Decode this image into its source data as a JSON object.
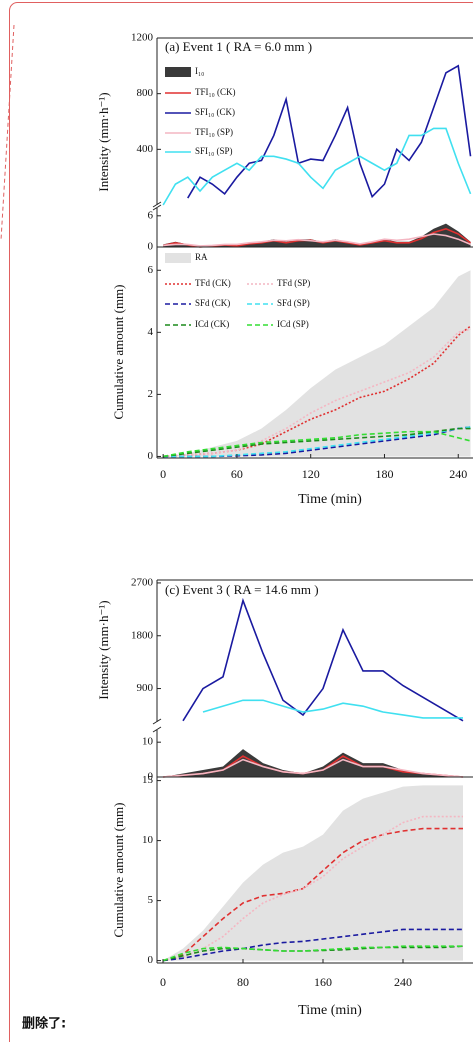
{
  "deleted_label": "删除了:",
  "chart_data": [
    {
      "type": "line",
      "title": "(a)  Event 1    ( RA = 6.0 mm )",
      "y_label": "Intensity (mm·h⁻¹)",
      "broken_axis": true,
      "legend": true,
      "x": [
        0,
        10,
        20,
        30,
        40,
        50,
        60,
        70,
        80,
        90,
        100,
        110,
        120,
        130,
        140,
        150,
        160,
        170,
        180,
        190,
        200,
        210,
        220,
        230,
        240,
        250
      ],
      "xlim": [
        -5,
        252
      ],
      "ylim": [
        0,
        7.5
      ],
      "yticks": [
        0,
        6
      ],
      "y2lim": [
        0,
        1200
      ],
      "y2ticks": [
        400,
        800,
        1200
      ],
      "series": [
        {
          "name": "I₁₀",
          "style": "area",
          "color": "#3a3a3a",
          "values": [
            0.5,
            1,
            0.5,
            0,
            0.3,
            0.5,
            0.3,
            0.8,
            1,
            1.5,
            1,
            1.5,
            1.5,
            1,
            1.5,
            1,
            0.5,
            1,
            1.5,
            1,
            1,
            2,
            3.5,
            4.5,
            3,
            1
          ]
        },
        {
          "name": "TFI₁₀ (CK)",
          "style": "line",
          "color": "#e03030",
          "values": [
            0.3,
            0.8,
            0.4,
            0,
            0.2,
            0.4,
            0.2,
            0.6,
            0.8,
            1.2,
            0.8,
            1.2,
            1.3,
            0.8,
            1.2,
            0.8,
            0.4,
            0.8,
            1.2,
            0.8,
            0.8,
            1.6,
            2.8,
            3.5,
            2.5,
            0.8
          ]
        },
        {
          "name": "SFI₁₀ (CK)",
          "style": "line",
          "color": "#1a1aa0",
          "axis": "y2",
          "values": [
            null,
            null,
            50,
            200,
            150,
            80,
            200,
            300,
            320,
            500,
            760,
            300,
            330,
            320,
            500,
            700,
            300,
            60,
            150,
            400,
            320,
            450,
            700,
            950,
            1000,
            350
          ]
        },
        {
          "name": "TFI₁₀ (SP)",
          "style": "line",
          "color": "#f4b6c2",
          "values": [
            0.3,
            0.5,
            0.5,
            0.2,
            0.3,
            0.5,
            0.5,
            0.8,
            1,
            1.3,
            1.2,
            1.4,
            1.2,
            1,
            1.3,
            1,
            0.6,
            1,
            1.5,
            1.3,
            1.5,
            2,
            2.5,
            2.2,
            1.5,
            0.5
          ]
        },
        {
          "name": "SFI₁₀ (SP)",
          "style": "line",
          "color": "#40e0f0",
          "axis": "y2",
          "values": [
            0,
            150,
            200,
            100,
            200,
            250,
            300,
            250,
            350,
            350,
            330,
            300,
            200,
            120,
            250,
            300,
            350,
            300,
            250,
            300,
            500,
            500,
            550,
            550,
            300,
            80
          ]
        }
      ]
    },
    {
      "type": "line",
      "y_label": "Cumulative amount (mm)",
      "x_label": "Time (min)",
      "legend": true,
      "x": [
        0,
        20,
        40,
        60,
        80,
        100,
        120,
        140,
        160,
        180,
        200,
        220,
        240,
        250
      ],
      "xlim": [
        -5,
        252
      ],
      "xticks": [
        0,
        60,
        120,
        180,
        240
      ],
      "ylim": [
        -0.05,
        6.75
      ],
      "yticks": [
        0,
        2,
        4,
        6
      ],
      "series": [
        {
          "name": "RA",
          "style": "area",
          "color": "#e2e2e2",
          "values": [
            0,
            0.1,
            0.3,
            0.5,
            0.9,
            1.5,
            2.2,
            2.8,
            3.2,
            3.6,
            4.2,
            4.8,
            5.8,
            6.0
          ]
        },
        {
          "name": "TFd (CK)",
          "style": "dotted",
          "color": "#e03030",
          "values": [
            0,
            0.05,
            0.1,
            0.2,
            0.4,
            0.8,
            1.2,
            1.5,
            1.9,
            2.1,
            2.5,
            3.0,
            3.9,
            4.2
          ]
        },
        {
          "name": "TFd (SP)",
          "style": "dotted",
          "color": "#f4b6c2",
          "values": [
            0,
            0.05,
            0.1,
            0.2,
            0.5,
            0.9,
            1.4,
            1.8,
            2.1,
            2.4,
            2.7,
            3.2,
            4.0,
            4.1
          ]
        },
        {
          "name": "SFd (CK)",
          "style": "dashed",
          "color": "#1a1aa0",
          "values": [
            0,
            0,
            0,
            0.02,
            0.05,
            0.1,
            0.2,
            0.3,
            0.4,
            0.5,
            0.6,
            0.7,
            0.9,
            0.95
          ]
        },
        {
          "name": "SFd (SP)",
          "style": "dashed",
          "color": "#40e0f0",
          "values": [
            0,
            0,
            0,
            0.05,
            0.1,
            0.15,
            0.25,
            0.35,
            0.45,
            0.55,
            0.65,
            0.75,
            0.9,
            0.95
          ]
        },
        {
          "name": "ICd (CK)",
          "style": "dashed",
          "color": "#1a8a1a",
          "values": [
            0,
            0.1,
            0.2,
            0.3,
            0.4,
            0.45,
            0.5,
            0.55,
            0.6,
            0.65,
            0.7,
            0.8,
            0.9,
            0.9
          ]
        },
        {
          "name": "ICd (SP)",
          "style": "dashed",
          "color": "#33dd33",
          "values": [
            0,
            0.15,
            0.25,
            0.35,
            0.45,
            0.5,
            0.55,
            0.6,
            0.7,
            0.75,
            0.8,
            0.8,
            0.6,
            0.5
          ]
        }
      ]
    },
    {
      "type": "line",
      "title": "(c)   Event 3    ( RA = 14.6 mm )",
      "y_label": "Intensity (mm·h⁻¹)",
      "broken_axis": true,
      "legend": false,
      "x": [
        0,
        20,
        40,
        60,
        80,
        100,
        120,
        140,
        160,
        180,
        200,
        220,
        240,
        260,
        280,
        300
      ],
      "xlim": [
        -6,
        310
      ],
      "ylim": [
        0,
        13.5
      ],
      "yticks": [
        0,
        10
      ],
      "y2lim": [
        330,
        2750
      ],
      "y2ticks": [
        900,
        1800,
        2700
      ],
      "series": [
        {
          "style": "area",
          "color": "#3a3a3a",
          "values": [
            0,
            1,
            2,
            3,
            8,
            4,
            2,
            1,
            3,
            7,
            4,
            4,
            2,
            1,
            0.5,
            0
          ]
        },
        {
          "style": "line",
          "color": "#e03030",
          "values": [
            0,
            0.5,
            1,
            2,
            6,
            3,
            1.5,
            1,
            2,
            6,
            3,
            3,
            1.5,
            1,
            0.5,
            0
          ]
        },
        {
          "style": "line",
          "color": "#f4b6c2",
          "values": [
            0,
            0.5,
            1,
            2,
            5,
            3,
            1.5,
            1,
            2,
            5,
            3,
            3,
            2,
            1,
            0.5,
            0
          ]
        },
        {
          "style": "line",
          "color": "#1a1aa0",
          "axis": "y2",
          "values": [
            null,
            350,
            900,
            1100,
            2400,
            1500,
            700,
            450,
            900,
            1900,
            1200,
            1200,
            950,
            750,
            550,
            350
          ]
        },
        {
          "style": "line",
          "color": "#40e0f0",
          "axis": "y2",
          "values": [
            null,
            null,
            500,
            600,
            700,
            700,
            600,
            500,
            550,
            650,
            600,
            500,
            450,
            400,
            400,
            400
          ]
        }
      ]
    },
    {
      "type": "line",
      "y_label": "Cumulative amount (mm)",
      "x_label": "Time (min)",
      "legend": false,
      "x": [
        0,
        20,
        40,
        60,
        80,
        100,
        120,
        140,
        160,
        180,
        200,
        220,
        240,
        260,
        280,
        300
      ],
      "xlim": [
        -6,
        310
      ],
      "xticks": [
        0,
        80,
        160,
        240
      ],
      "ylim": [
        -0.2,
        15.3
      ],
      "yticks": [
        0,
        5,
        10,
        15
      ],
      "series": [
        {
          "style": "area",
          "color": "#e2e2e2",
          "values": [
            0,
            1,
            2.5,
            4.5,
            6.5,
            8,
            9,
            9.5,
            10.5,
            12.5,
            13.5,
            14,
            14.5,
            14.6,
            14.6,
            14.6
          ]
        },
        {
          "style": "dashed",
          "color": "#e03030",
          "values": [
            0,
            0.5,
            2,
            3.5,
            4.8,
            5.4,
            5.6,
            6,
            7.5,
            9,
            10,
            10.5,
            10.8,
            11,
            11,
            11
          ]
        },
        {
          "style": "dotted",
          "color": "#f4b6c2",
          "values": [
            0,
            0.3,
            1,
            2,
            3.5,
            4.8,
            5.5,
            6,
            7,
            8.5,
            9.5,
            10.5,
            11.5,
            12,
            12,
            12
          ]
        },
        {
          "style": "dashed",
          "color": "#1a1aa0",
          "values": [
            0,
            0.2,
            0.5,
            0.8,
            1,
            1.3,
            1.5,
            1.6,
            1.8,
            2.0,
            2.2,
            2.4,
            2.6,
            2.6,
            2.6,
            2.6
          ]
        },
        {
          "style": "dashed",
          "color": "#1a8a1a",
          "values": [
            0,
            0.4,
            0.8,
            1,
            1,
            0.9,
            0.8,
            0.8,
            0.85,
            0.9,
            1,
            1.1,
            1.1,
            1.1,
            1.1,
            1.2
          ]
        },
        {
          "style": "dashed",
          "color": "#33dd33",
          "values": [
            0,
            0.6,
            1,
            1.1,
            1,
            0.9,
            0.8,
            0.8,
            0.9,
            1,
            1.1,
            1.1,
            1.2,
            1.2,
            1.2,
            1.2
          ]
        }
      ]
    }
  ]
}
